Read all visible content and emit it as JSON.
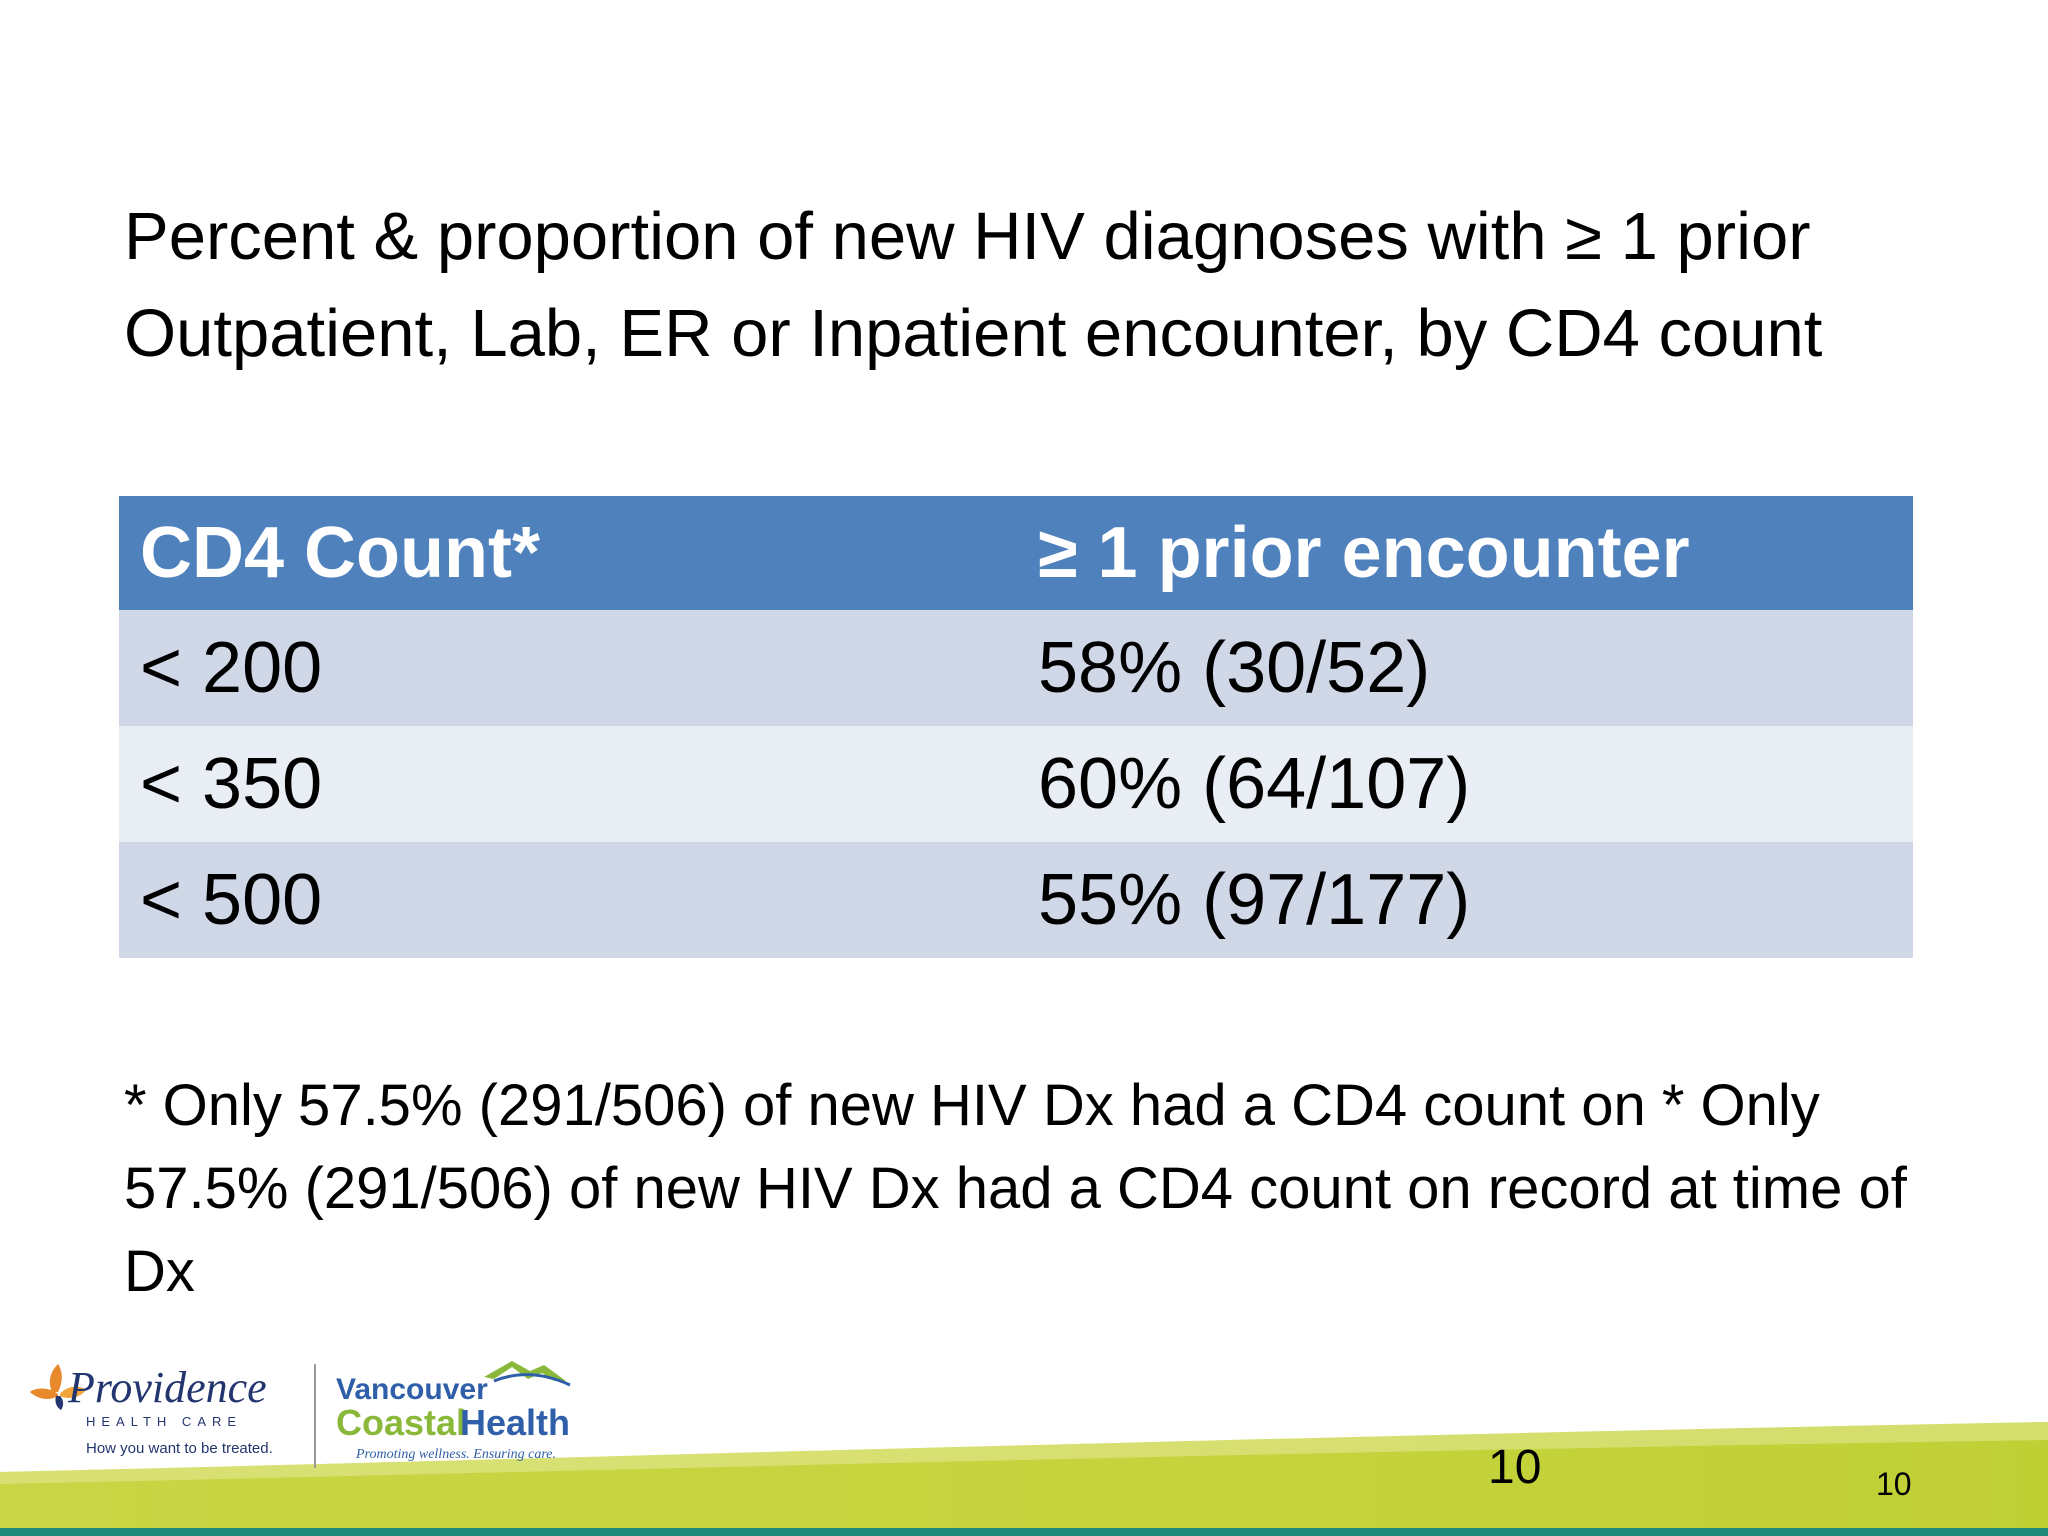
{
  "slide": {
    "title": "Percent & proportion of new HIV diagnoses with ≥ 1 prior Outpatient, Lab, ER or Inpatient encounter, by CD4 count",
    "table": {
      "headers": [
        "CD4 Count*",
        "≥ 1 prior encounter"
      ],
      "rows": [
        [
          "< 200",
          "58% (30/52)"
        ],
        [
          "< 350",
          "60% (64/107)"
        ],
        [
          "< 500",
          "55% (97/177)"
        ]
      ]
    },
    "footnote": "* Only 57.5% (291/506) of new HIV Dx had a CD4 count on * Only 57.5% (291/506) of new HIV Dx had a CD4 count on record at time of Dx",
    "slide_number_large": "10",
    "slide_number_small": "10"
  },
  "logos": {
    "providence": {
      "name": "Providence",
      "subtitle": "HEALTH CARE",
      "tagline": "How you want to be treated."
    },
    "vch": {
      "line1": "Vancouver",
      "line2a": "Coastal",
      "line2b": "Health",
      "tagline": "Promoting wellness. Ensuring care."
    }
  },
  "colors": {
    "header_bg": "#4f81bd",
    "row_odd_bg": "#d0d8e8",
    "row_even_bg": "#e9edf4",
    "band_green": "#c8d640",
    "band_teal": "#1f8a7a",
    "vch_blue": "#2f5fa8",
    "vch_green": "#8ab83a",
    "providence_navy": "#23356e",
    "providence_orange": "#e8892b"
  }
}
